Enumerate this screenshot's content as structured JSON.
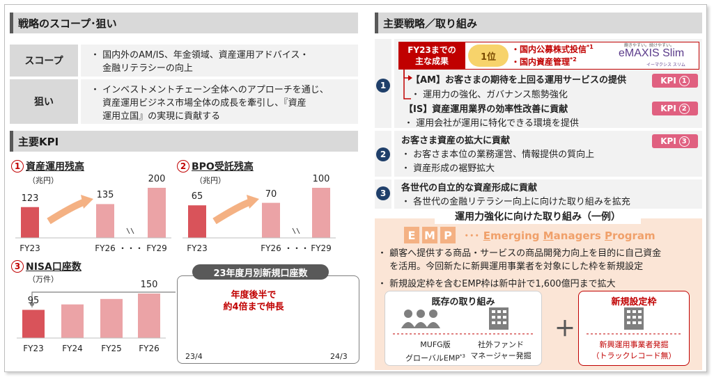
{
  "left": {
    "scope_header": "戦略のスコープ･狙い",
    "scope_rows": [
      {
        "label": "スコープ",
        "lines": [
          "・ 国内外のAM/IS、年金領域、資産運用アドバイス・",
          "　 金融リテラシーの向上"
        ]
      },
      {
        "label": "狙い",
        "lines": [
          "・ インベストメントチェーン全体へのアプローチを通じ、",
          "　 資産運用ビジネス市場全体の成長を牽引し、『資産",
          "　 運用立国』の実現に貢献する"
        ]
      }
    ],
    "kpi_header": "主要KPI",
    "kpi1": {
      "num": "1",
      "title": "資産運用残高",
      "unit": "（兆円）"
    },
    "kpi2": {
      "num": "2",
      "title": "BPO受託残高",
      "unit": "（兆円）"
    },
    "kpi3": {
      "num": "3",
      "title": "NISA口座数",
      "unit": "（万件）"
    },
    "inset": {
      "title": "23年度月別新規口座数",
      "note1": "年度後半で",
      "note2": "約4倍まで伸長",
      "x_start": "23/4",
      "x_end": "24/3"
    },
    "dots": "・・・"
  },
  "chart_data": [
    {
      "type": "bar",
      "title": "資産運用残高",
      "categories": [
        "FY23",
        "FY26",
        "FY29"
      ],
      "values": [
        123,
        135,
        200
      ],
      "ylabel": "（兆円）"
    },
    {
      "type": "bar",
      "title": "BPO受託残高",
      "categories": [
        "FY23",
        "FY26",
        "FY29"
      ],
      "values": [
        65,
        70,
        100
      ],
      "ylabel": "（兆円）"
    },
    {
      "type": "bar",
      "title": "NISA口座数",
      "categories": [
        "FY23",
        "FY24",
        "FY25",
        "FY26"
      ],
      "values": [
        95,
        null,
        null,
        150
      ],
      "ylabel": "（万件）"
    },
    {
      "type": "line",
      "title": "23年度月別新規口座数",
      "x": [
        "23/4",
        "",
        "",
        "",
        "",
        "",
        "",
        "",
        "",
        "",
        "",
        "24/3"
      ],
      "values": [
        1.0,
        1.3,
        1.5,
        1.7,
        1.9,
        1.9,
        2.2,
        2.6,
        2.8,
        4.2,
        3.6,
        4.0
      ]
    }
  ],
  "right": {
    "header": "主要戦略／取り組み",
    "achievement": {
      "label1": "FY23までの",
      "label2": "主な成果",
      "medal": "1位",
      "item1": "・国内公募株式投信",
      "sup1": "*1",
      "item2": "・国内資産管理",
      "sup2": "*2",
      "brand_tag": "飽きやすい。続けやすい。",
      "brand": "eMAXIS Slim",
      "brand_sub": "イーマクシス スリム"
    },
    "s1": {
      "num": "1",
      "h1": "【AM】お客さまの期待を上回る運用サービスの提供",
      "b1": "・ 運用力の強化、ガバナンス態勢強化",
      "h2": "【IS】資産運用業界の効率性改善に貢献",
      "b2": "・ 運用会社が運用に特化できる環境を提供",
      "kpi1": "KPI",
      "kpi1n": "1",
      "kpi2": "KPI",
      "kpi2n": "2"
    },
    "s2": {
      "num": "2",
      "h": "お客さま資産の拡大に貢献",
      "b1": "・ お客さま本位の業務運営、情報提供の質向上",
      "b2": "・ 資産形成の裾野拡大",
      "kpi": "KPI",
      "kpin": "3"
    },
    "s3": {
      "num": "3",
      "h": "各世代の自立的な資産形成に貢献",
      "b1": "・ 各世代の金融リテラシー向上に向けた取り組みを拡充"
    },
    "emp": {
      "title": "運用力強化に向けた取り組み（一例）",
      "letters": [
        "E",
        "M",
        "P"
      ],
      "full_dots": "･･･",
      "full_e": "E",
      "full_e_rest": "merging ",
      "full_m": "M",
      "full_m_rest": "anagers ",
      "full_p": "P",
      "full_p_rest": "rogram",
      "b1a": "・ 顧客へ提供する商品・サービスの商品開発力向上を目的に自己資金",
      "b1b": "　 を活用。今回新たに新興運用事業者を対象にした枠を新規設定",
      "b2": "・ 新規設定枠を含むEMP枠は新中計で1,600億円まで拡大",
      "existing": {
        "title": "既存の取り組み",
        "l1a": "MUFG版",
        "l1b": "グローバルEMP",
        "l1sup": "*3",
        "l2a": "社外ファンド",
        "l2b": "マネージャー発掘"
      },
      "plus": "＋",
      "new": {
        "title": "新規設定枠",
        "la": "新興運用事業者発掘",
        "lb": "（トラックレコード無）"
      }
    }
  },
  "colors": {
    "accent_red": "#c00000",
    "bar_dark": "#d9535a",
    "bar_light": "#eba3a6",
    "arrow": "#f4b183",
    "navy": "#1f3f6a",
    "kpi_pink": "#e06080",
    "emp_bg": "#fbe5d6"
  }
}
